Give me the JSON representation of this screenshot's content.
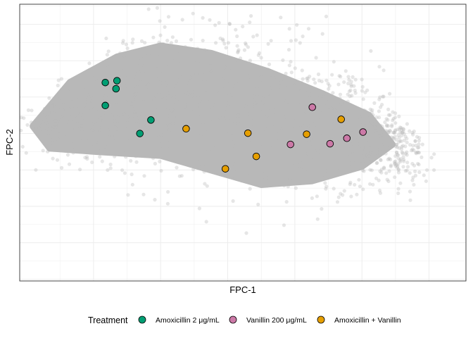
{
  "chart_data": {
    "type": "scatter",
    "xlabel": "FPC-1",
    "ylabel": "FPC-2",
    "grid": true,
    "xlim": [
      -6.2,
      7.1
    ],
    "ylim": [
      -4.05,
      3.55
    ],
    "legend_position": "bottom",
    "legend_title": "Treatment",
    "colors": {
      "background_points": "#b8b8b8",
      "Amoxicillin 2 μg/mL": "#009E73",
      "Vanillin 200 μg/mL": "#CC79A7",
      "Amoxicillin + Vanillin": "#E69F00"
    },
    "background_cloud": {
      "description_note": "dense grey point cloud of all cells",
      "color": "#b8b8b8",
      "opacity": 0.35
    },
    "series": [
      {
        "name": "Amoxicillin 2 μg/mL",
        "color": "#009E73",
        "points": [
          {
            "x": -3.65,
            "y": 1.4
          },
          {
            "x": -3.3,
            "y": 1.45
          },
          {
            "x": -3.33,
            "y": 1.23
          },
          {
            "x": -3.65,
            "y": 0.77
          },
          {
            "x": -2.62,
            "y": 0.0
          },
          {
            "x": -2.29,
            "y": 0.37
          }
        ]
      },
      {
        "name": "Vanillin 200 μg/mL",
        "color": "#CC79A7",
        "points": [
          {
            "x": 2.52,
            "y": 0.72
          },
          {
            "x": 1.87,
            "y": -0.3
          },
          {
            "x": 3.05,
            "y": -0.28
          },
          {
            "x": 3.55,
            "y": -0.13
          },
          {
            "x": 4.03,
            "y": 0.04
          }
        ]
      },
      {
        "name": "Amoxicillin + Vanillin",
        "color": "#E69F00",
        "points": [
          {
            "x": -1.24,
            "y": 0.13
          },
          {
            "x": 0.6,
            "y": 0.01
          },
          {
            "x": 2.35,
            "y": -0.02
          },
          {
            "x": 3.38,
            "y": 0.39
          },
          {
            "x": 0.85,
            "y": -0.63
          },
          {
            "x": -0.07,
            "y": -0.97
          }
        ]
      }
    ]
  }
}
